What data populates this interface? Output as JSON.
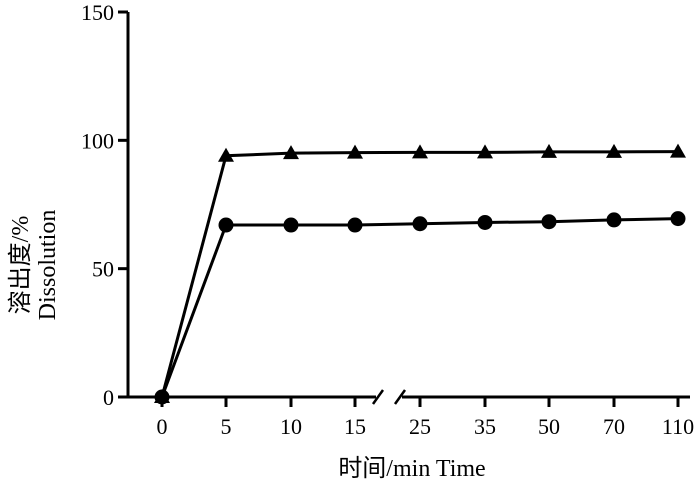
{
  "chart_data": {
    "type": "line",
    "title": "",
    "xlabel": "时间/min  Time",
    "ylabel_line1": "溶出度/%",
    "ylabel_line2": "Dissolution",
    "ylim": [
      0,
      150
    ],
    "yticks": [
      "0",
      "50",
      "100",
      "150"
    ],
    "categories": [
      "0",
      "5",
      "10",
      "15",
      "25",
      "35",
      "50",
      "70",
      "110"
    ],
    "axis_break_between": [
      "15",
      "25"
    ],
    "grid": false,
    "legend": "none",
    "series": [
      {
        "marker": "triangle",
        "color": "#000000",
        "values": [
          0,
          94,
          95,
          95.2,
          95.3,
          95.3,
          95.5,
          95.5,
          95.6
        ]
      },
      {
        "marker": "circle",
        "color": "#000000",
        "values": [
          0,
          67,
          67,
          67,
          67.5,
          68,
          68.3,
          69,
          69.5
        ]
      }
    ]
  }
}
